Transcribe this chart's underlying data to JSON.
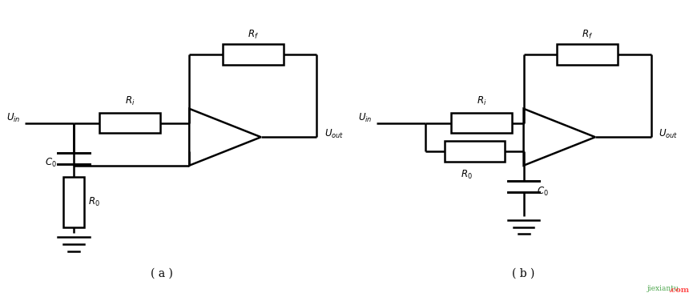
{
  "bg_color": "#ffffff",
  "line_color": "#000000",
  "line_width": 1.8,
  "fig_width": 8.65,
  "fig_height": 3.76,
  "label_a": "( a )",
  "label_b": "( b )",
  "text_Uin_a": "$U_{in}$",
  "text_Uout_a": "$U_{out}$",
  "text_Rf_a": "$R_f$",
  "text_Ri_a": "$R_i$",
  "text_C0_a": "$C_0$",
  "text_R0_a": "$R_0$",
  "text_Uin_b": "$U_{in}$",
  "text_Uout_b": "$U_{out}$",
  "text_Rf_b": "$R_f$",
  "text_Ri_b": "$R_i$",
  "text_C0_b": "$C_0$",
  "text_R0_b": "$R_0$",
  "watermark": "jiexiantu",
  "watermark2": ".com"
}
